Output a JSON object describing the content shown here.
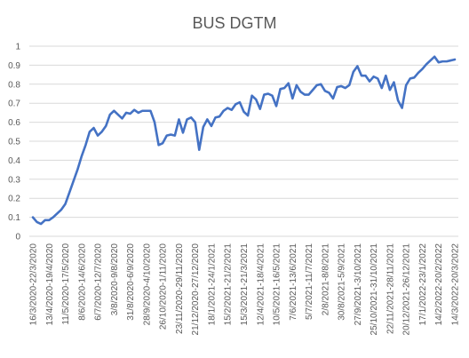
{
  "chart_data": {
    "type": "line",
    "title": "BUS DGTM",
    "xlabel": "",
    "ylabel": "",
    "ylim": [
      0,
      1
    ],
    "yticks": [
      "0",
      "0.1",
      "0.2",
      "0.3",
      "0.4",
      "0.5",
      "0.6",
      "0.7",
      "0.8",
      "0.9",
      "1"
    ],
    "grid": true,
    "legend": "none",
    "line_color": "#4472C4",
    "grid_color": "#D9D9D9",
    "x_tick_labels": [
      "16/3/2020-22/3/2020",
      "13/4/2020-19/4/2020",
      "11/5/2020-17/5/2020",
      "8/6/2020-14/6/2020",
      "6/7/2020-12/7/2020",
      "3/8/2020-9/8/2020",
      "31/8/2020-6/9/2020",
      "28/9/2020-4/10/2020",
      "26/10/2020-1/11/2020",
      "23/11/2020-29/11/2020",
      "21/12/2020-27/12/2020",
      "18/1/2021-24/1/2021",
      "15/2/2021-21/2/2021",
      "15/3/2021-21/3/2021",
      "12/4/2021-18/4/2021",
      "10/5/2021-16/5/2021",
      "7/6/2021-13/6/2021",
      "5/7/2021-11/7/2021",
      "2/8/2021-8/8/2021",
      "30/8/2021-5/9/2021",
      "27/9/2021-3/10/2021",
      "25/10/2021-31/10/2021",
      "22/11/2021-28/11/2021",
      "20/12/2021-26/12/2021",
      "17/1/2022-23/1/2022",
      "14/2/2022-20/2/2022",
      "14/3/2022-20/3/2022"
    ],
    "label_every": 4,
    "series": [
      {
        "values": [
          0.1,
          0.075,
          0.065,
          0.085,
          0.085,
          0.1,
          0.12,
          0.14,
          0.17,
          0.23,
          0.29,
          0.35,
          0.42,
          0.48,
          0.55,
          0.57,
          0.53,
          0.55,
          0.58,
          0.64,
          0.66,
          0.64,
          0.62,
          0.65,
          0.645,
          0.665,
          0.65,
          0.66,
          0.66,
          0.66,
          0.6,
          0.48,
          0.49,
          0.53,
          0.535,
          0.53,
          0.615,
          0.545,
          0.615,
          0.625,
          0.6,
          0.455,
          0.575,
          0.615,
          0.58,
          0.625,
          0.63,
          0.66,
          0.675,
          0.665,
          0.695,
          0.705,
          0.655,
          0.635,
          0.74,
          0.72,
          0.67,
          0.745,
          0.75,
          0.74,
          0.685,
          0.775,
          0.78,
          0.805,
          0.725,
          0.795,
          0.76,
          0.745,
          0.745,
          0.77,
          0.795,
          0.8,
          0.765,
          0.755,
          0.725,
          0.785,
          0.79,
          0.78,
          0.795,
          0.865,
          0.895,
          0.845,
          0.845,
          0.815,
          0.84,
          0.83,
          0.78,
          0.845,
          0.77,
          0.81,
          0.715,
          0.675,
          0.795,
          0.83,
          0.835,
          0.86,
          0.88,
          0.905,
          0.925,
          0.945,
          0.915,
          0.92,
          0.92,
          0.925,
          0.93
        ]
      }
    ]
  }
}
